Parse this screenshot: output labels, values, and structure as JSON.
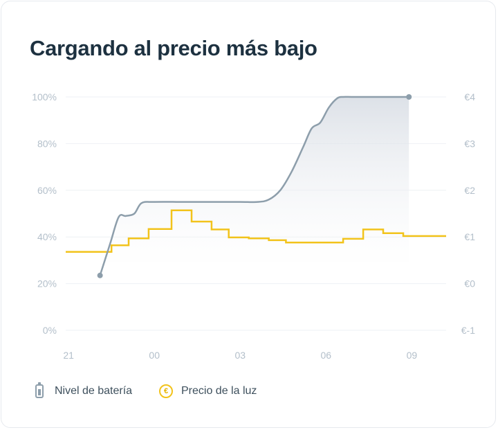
{
  "title": "Cargando al precio más bajo",
  "colors": {
    "battery": "#8d9eab",
    "price": "#f2c31b",
    "grid": "#eef1f4",
    "tick": "#b3bfca",
    "title": "#1d3140"
  },
  "legend": {
    "battery_label": "Nivel de batería",
    "battery_icon": "battery-icon",
    "price_label": "Precio de la luz",
    "price_icon": "euro-circle-icon"
  },
  "chart_data": {
    "type": "line",
    "title": "Cargando al precio más bajo",
    "x_ticks": [
      "21",
      "00",
      "03",
      "06",
      "09"
    ],
    "x_tick_hours": [
      21,
      24,
      27,
      30,
      33
    ],
    "x_range_hours": [
      20.9,
      34.2
    ],
    "y_left": {
      "ticks": [
        "100%",
        "80%",
        "60%",
        "40%",
        "20%",
        "0%"
      ],
      "values": [
        100,
        80,
        60,
        40,
        20,
        0
      ],
      "range": [
        0,
        100
      ]
    },
    "y_right": {
      "ticks": [
        "€4",
        "€3",
        "€2",
        "€1",
        "€0",
        "€-1"
      ],
      "values": [
        4,
        3,
        2,
        1,
        0,
        -1
      ],
      "range": [
        -1,
        4
      ]
    },
    "grid": true,
    "legend_position": "bottom-left",
    "series": [
      {
        "name": "Nivel de batería",
        "axis": "left",
        "shape": "smooth-line-with-fill",
        "x_hours": [
          22.1,
          22.45,
          22.75,
          23.0,
          23.3,
          23.55,
          24.0,
          25.0,
          26.0,
          27.0,
          27.6,
          28.0,
          28.4,
          28.8,
          29.2,
          29.5,
          29.8,
          30.1,
          30.4,
          30.6,
          30.9,
          31.5,
          32.0,
          32.5,
          32.9
        ],
        "values": [
          23.5,
          37,
          48.5,
          49,
          50,
          54.5,
          55,
          55,
          55,
          55,
          55,
          56,
          60,
          68,
          78.5,
          86.5,
          89,
          95.5,
          99.5,
          100,
          100,
          100,
          100,
          100,
          100
        ]
      },
      {
        "name": "Precio de la luz",
        "axis": "right",
        "shape": "step",
        "x_hours": [
          20.9,
          22.0,
          22.5,
          23.1,
          23.8,
          24.6,
          25.3,
          26.0,
          26.6,
          27.3,
          28.0,
          28.6,
          29.3,
          30.0,
          30.6,
          31.3,
          32.0,
          32.7,
          33.3
        ],
        "values": [
          0.68,
          0.68,
          0.82,
          0.97,
          1.17,
          1.57,
          1.33,
          1.16,
          0.99,
          0.97,
          0.93,
          0.88,
          0.88,
          0.88,
          0.96,
          1.16,
          1.08,
          1.02,
          1.02
        ],
        "x_end_hours": 34.2
      }
    ],
    "markers": [
      {
        "series": "Nivel de batería",
        "x_hours": 22.1,
        "value": 23.5
      },
      {
        "series": "Nivel de batería",
        "x_hours": 32.9,
        "value": 100
      }
    ]
  }
}
